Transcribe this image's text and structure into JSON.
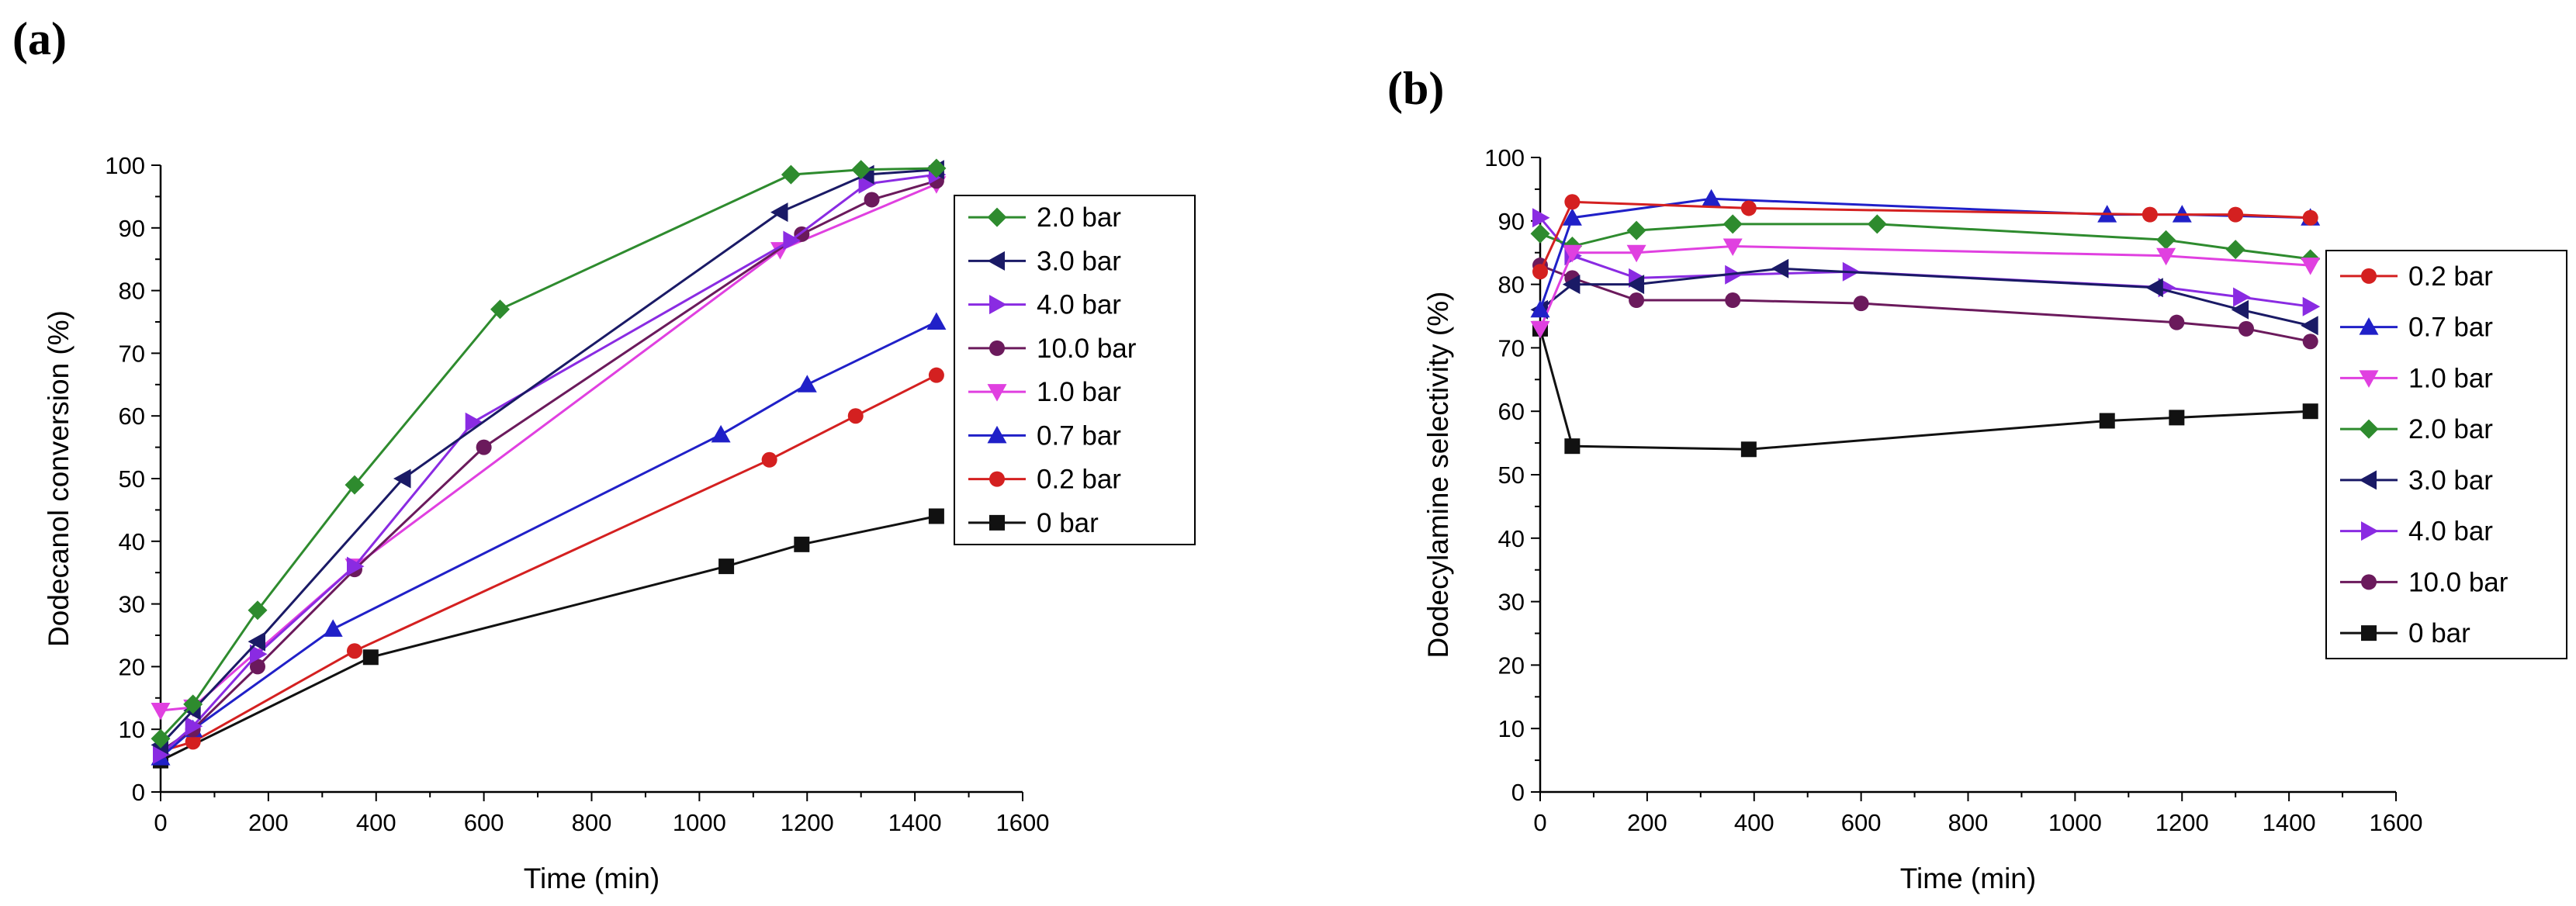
{
  "chart_data": [
    {
      "panel": "(a)",
      "type": "line",
      "xlabel": "Time (min)",
      "ylabel": "Dodecanol conversion (%)",
      "xlim": [
        0,
        1600
      ],
      "ylim": [
        0,
        100
      ],
      "xticks": [
        0,
        200,
        400,
        600,
        800,
        1000,
        1200,
        1400,
        1600
      ],
      "yticks": [
        0,
        10,
        20,
        30,
        40,
        50,
        60,
        70,
        80,
        90,
        100
      ],
      "legend": "top-right",
      "grid": false,
      "series": [
        {
          "name": "2.0 bar",
          "color": "#2e8b2e",
          "marker": "diamond",
          "x": [
            0,
            60,
            180,
            360,
            630,
            1170,
            1300,
            1440
          ],
          "y": [
            8.5,
            14,
            29,
            49,
            77,
            98.5,
            99.3,
            99.5
          ]
        },
        {
          "name": "3.0 bar",
          "color": "#1a1a66",
          "marker": "triangle-left",
          "x": [
            0,
            60,
            180,
            450,
            1150,
            1310,
            1440
          ],
          "y": [
            7.5,
            13,
            24,
            50,
            92.5,
            98.5,
            99.3
          ]
        },
        {
          "name": "4.0 bar",
          "color": "#8a2be2",
          "marker": "triangle-right",
          "x": [
            0,
            60,
            180,
            360,
            580,
            1170,
            1310,
            1440
          ],
          "y": [
            6,
            10.5,
            22,
            36,
            59,
            88,
            97,
            98.5
          ]
        },
        {
          "name": "10.0 bar",
          "color": "#6b1a5c",
          "marker": "circle",
          "x": [
            0,
            60,
            180,
            360,
            600,
            1190,
            1320,
            1440
          ],
          "y": [
            6.5,
            10,
            20,
            35.5,
            55,
            89,
            94.5,
            97.5
          ]
        },
        {
          "name": "1.0 bar",
          "color": "#e040e0",
          "marker": "triangle-down",
          "x": [
            0,
            60,
            360,
            1150,
            1440
          ],
          "y": [
            13,
            13.5,
            36,
            86.5,
            97
          ]
        },
        {
          "name": "0.7 bar",
          "color": "#2020c8",
          "marker": "triangle-up",
          "x": [
            0,
            60,
            320,
            1040,
            1200,
            1440
          ],
          "y": [
            5.5,
            10,
            26,
            57,
            65,
            75
          ]
        },
        {
          "name": "0.2 bar",
          "color": "#d42020",
          "marker": "circle",
          "x": [
            0,
            60,
            360,
            1130,
            1290,
            1440
          ],
          "y": [
            6.5,
            8,
            22.5,
            53,
            60,
            66.5
          ]
        },
        {
          "name": "0 bar",
          "color": "#111111",
          "marker": "square",
          "x": [
            0,
            390,
            1050,
            1190,
            1440
          ],
          "y": [
            5,
            21.5,
            36,
            39.5,
            44
          ]
        }
      ]
    },
    {
      "panel": "(b)",
      "type": "line",
      "xlabel": "Time (min)",
      "ylabel": "Dodecylamine selectivity (%)",
      "xlim": [
        0,
        1600
      ],
      "ylim": [
        0,
        100
      ],
      "xticks": [
        0,
        200,
        400,
        600,
        800,
        1000,
        1200,
        1400,
        1600
      ],
      "yticks": [
        0,
        10,
        20,
        30,
        40,
        50,
        60,
        70,
        80,
        90,
        100
      ],
      "legend": "right",
      "grid": false,
      "series": [
        {
          "name": "0.2 bar",
          "color": "#d42020",
          "marker": "circle",
          "x": [
            0,
            60,
            390,
            1140,
            1300,
            1440
          ],
          "y": [
            82,
            93,
            92,
            91,
            91,
            90.5
          ]
        },
        {
          "name": "0.7 bar",
          "color": "#2020c8",
          "marker": "triangle-up",
          "x": [
            0,
            60,
            320,
            1060,
            1200,
            1440
          ],
          "y": [
            76,
            90.5,
            93.5,
            91,
            91,
            90.5
          ]
        },
        {
          "name": "1.0 bar",
          "color": "#e040e0",
          "marker": "triangle-down",
          "x": [
            0,
            60,
            180,
            360,
            1170,
            1440
          ],
          "y": [
            73,
            85,
            85,
            86,
            84.5,
            83
          ]
        },
        {
          "name": "2.0 bar",
          "color": "#2e8b2e",
          "marker": "diamond",
          "x": [
            0,
            60,
            180,
            360,
            630,
            1170,
            1300,
            1440
          ],
          "y": [
            88,
            86,
            88.5,
            89.5,
            89.5,
            87,
            85.5,
            84
          ]
        },
        {
          "name": "3.0 bar",
          "color": "#1a1a66",
          "marker": "triangle-left",
          "x": [
            0,
            60,
            180,
            450,
            1150,
            1310,
            1440
          ],
          "y": [
            76,
            80,
            80,
            82.5,
            79.5,
            76,
            73.5
          ]
        },
        {
          "name": "4.0 bar",
          "color": "#8a2be2",
          "marker": "triangle-right",
          "x": [
            0,
            60,
            180,
            360,
            580,
            1170,
            1310,
            1440
          ],
          "y": [
            90.5,
            84.5,
            81,
            81.5,
            82,
            79.5,
            78,
            76.5
          ]
        },
        {
          "name": "10.0 bar",
          "color": "#6b1a5c",
          "marker": "circle",
          "x": [
            0,
            60,
            180,
            360,
            600,
            1190,
            1320,
            1440
          ],
          "y": [
            83,
            81,
            77.5,
            77.5,
            77,
            74,
            73,
            71
          ]
        },
        {
          "name": "0 bar",
          "color": "#111111",
          "marker": "square",
          "x": [
            0,
            60,
            390,
            1060,
            1190,
            1440
          ],
          "y": [
            73,
            54.5,
            54,
            58.5,
            59,
            60
          ]
        }
      ]
    }
  ]
}
